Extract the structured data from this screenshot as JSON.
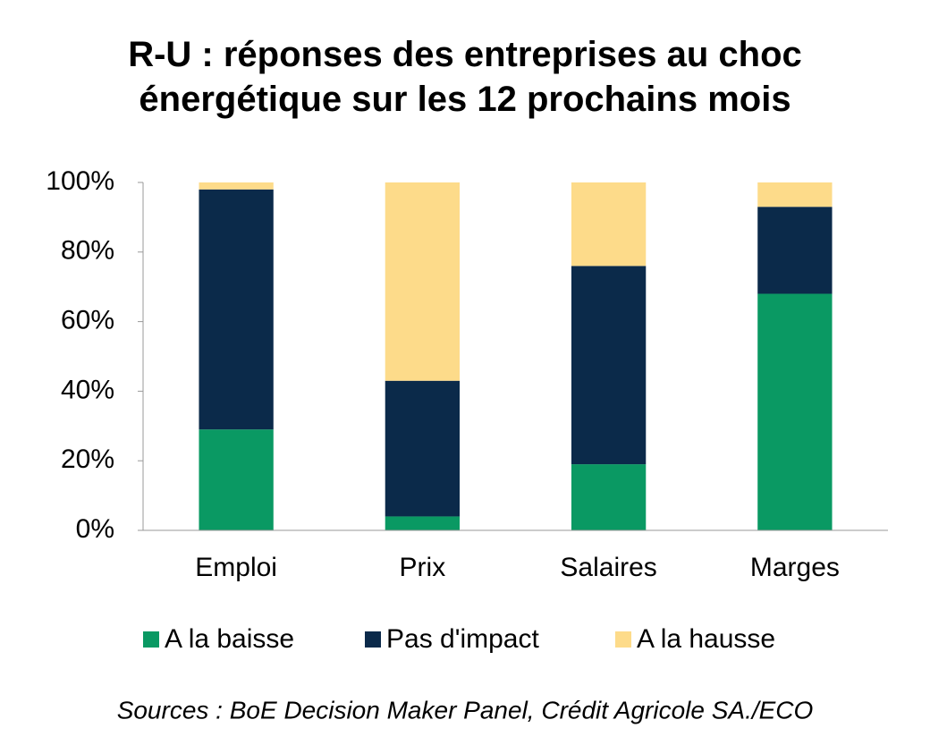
{
  "chart_data": {
    "type": "stacked_bar",
    "title": "R-U : réponses des entreprises au choc énergétique sur les 12 prochains mois",
    "categories": [
      "Emploi",
      "Prix",
      "Salaires",
      "Marges"
    ],
    "series": [
      {
        "name": "A la baisse",
        "color": "#0a9963",
        "values": [
          29,
          4,
          19,
          68
        ]
      },
      {
        "name": "Pas d'impact",
        "color": "#0b2a4a",
        "values": [
          69,
          39,
          57,
          25
        ]
      },
      {
        "name": "A la hausse",
        "color": "#fddb8a",
        "values": [
          2,
          57,
          24,
          7
        ]
      }
    ],
    "ylim": [
      0,
      100
    ],
    "yticks": [
      {
        "value": 0,
        "label": "0%"
      },
      {
        "value": 20,
        "label": "20%"
      },
      {
        "value": 40,
        "label": "40%"
      },
      {
        "value": 60,
        "label": "60%"
      },
      {
        "value": 80,
        "label": "80%"
      },
      {
        "value": 100,
        "label": "100%"
      }
    ],
    "source": "Sources : BoE Decision Maker Panel, Crédit Agricole SA./ECO"
  }
}
